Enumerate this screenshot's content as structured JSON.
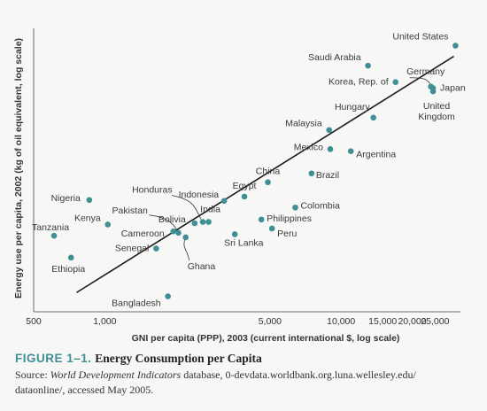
{
  "chart_data": {
    "type": "scatter",
    "x_scale": "log",
    "y_scale": "log",
    "xlabel": "GNI per capita (PPP), 2003 (current international $, log scale)",
    "ylabel": "Energy use per capita, 2002 (kg of oil equivalent, log scale)",
    "x_ticks": [
      {
        "value": 500,
        "label": "500"
      },
      {
        "value": 1000,
        "label": "1,000"
      },
      {
        "value": 5000,
        "label": "5,000"
      },
      {
        "value": 10000,
        "label": "10,000"
      },
      {
        "value": 15000,
        "label": "15,000"
      },
      {
        "value": 20000,
        "label": "20,000"
      },
      {
        "value": 25000,
        "label": "25,000"
      }
    ],
    "xlim": [
      500,
      32000
    ],
    "ylim": [
      130,
      9000
    ],
    "fit_line": {
      "x": [
        760,
        30000
      ],
      "y": [
        175,
        6700
      ]
    },
    "points": [
      {
        "label": "United States",
        "x": 30500,
        "y": 7900
      },
      {
        "label": "Saudi Arabia",
        "x": 13000,
        "y": 5800
      },
      {
        "label": "Germany",
        "x": 24000,
        "y": 4200
      },
      {
        "label": "Korea, Rep. of",
        "x": 17000,
        "y": 4500
      },
      {
        "label": "Japan",
        "x": 24500,
        "y": 4100
      },
      {
        "label": "United Kingdom",
        "x": 24500,
        "y": 3900
      },
      {
        "label": "Hungary",
        "x": 13700,
        "y": 2600
      },
      {
        "label": "Malaysia",
        "x": 8900,
        "y": 2150
      },
      {
        "label": "Mexico",
        "x": 9000,
        "y": 1600
      },
      {
        "label": "Argentina",
        "x": 11000,
        "y": 1550
      },
      {
        "label": "China",
        "x": 4900,
        "y": 960
      },
      {
        "label": "Brazil",
        "x": 7500,
        "y": 1100
      },
      {
        "label": "Egypt",
        "x": 3900,
        "y": 770
      },
      {
        "label": "Colombia",
        "x": 6400,
        "y": 650
      },
      {
        "label": "Indonesia",
        "x": 3200,
        "y": 720
      },
      {
        "label": "India",
        "x": 2750,
        "y": 520
      },
      {
        "label": "Honduras",
        "x": 2600,
        "y": 520
      },
      {
        "label": "Philippines",
        "x": 4600,
        "y": 540
      },
      {
        "label": "Peru",
        "x": 5100,
        "y": 470
      },
      {
        "label": "Bolivia",
        "x": 2400,
        "y": 510
      },
      {
        "label": "Sri Lanka",
        "x": 3550,
        "y": 430
      },
      {
        "label": "Pakistan",
        "x": 2050,
        "y": 440
      },
      {
        "label": "Cameroon",
        "x": 1950,
        "y": 450
      },
      {
        "label": "Ghana",
        "x": 2200,
        "y": 410
      },
      {
        "label": "Senegal",
        "x": 1650,
        "y": 345
      },
      {
        "label": "Nigeria",
        "x": 860,
        "y": 730
      },
      {
        "label": "Kenya",
        "x": 1030,
        "y": 500
      },
      {
        "label": "Tanzania",
        "x": 610,
        "y": 420
      },
      {
        "label": "Ethiopia",
        "x": 720,
        "y": 300
      },
      {
        "label": "Bangladesh",
        "x": 1850,
        "y": 165
      }
    ],
    "point_color": "#3f8f95",
    "line_color": "#1a1a1a"
  },
  "caption": {
    "figure_number": "FIGURE 1–1.",
    "figure_title": "Energy Consumption per Capita",
    "source_prefix": "Source: ",
    "source_italic": "World Development Indicators",
    "source_rest": " database, 0-devdata.worldbank.org.luna.wellesley.edu/",
    "source_line2": "dataonline/, accessed May 2005."
  }
}
